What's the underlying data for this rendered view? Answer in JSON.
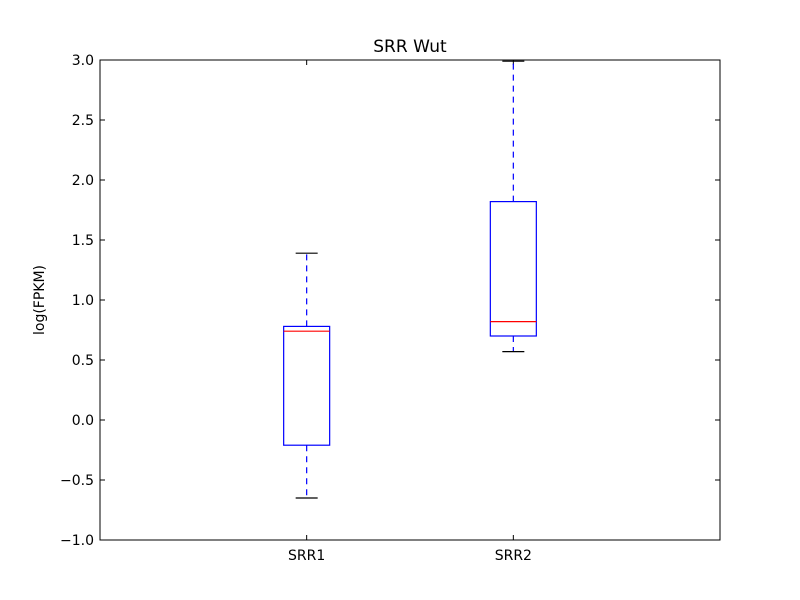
{
  "chart_data": {
    "type": "box",
    "title": "SRR Wut",
    "xlabel": "",
    "ylabel": "log(FPKM)",
    "ylim": [
      -1.0,
      3.0
    ],
    "yticks": [
      {
        "value": -1.0,
        "label": "−1.0"
      },
      {
        "value": -0.5,
        "label": "−0.5"
      },
      {
        "value": 0.0,
        "label": "0.0"
      },
      {
        "value": 0.5,
        "label": "0.5"
      },
      {
        "value": 1.0,
        "label": "1.0"
      },
      {
        "value": 1.5,
        "label": "1.5"
      },
      {
        "value": 2.0,
        "label": "2.0"
      },
      {
        "value": 2.5,
        "label": "2.5"
      },
      {
        "value": 3.0,
        "label": "3.0"
      }
    ],
    "categories": [
      "SRR1",
      "SRR2"
    ],
    "boxes": [
      {
        "label": "SRR1",
        "whisker_low": -0.65,
        "q1": -0.21,
        "median": 0.74,
        "q3": 0.78,
        "whisker_high": 1.39
      },
      {
        "label": "SRR2",
        "whisker_low": 0.57,
        "q1": 0.7,
        "median": 0.82,
        "q3": 1.82,
        "whisker_high": 2.99
      }
    ],
    "grid": false,
    "colors": {
      "box": "#0000ff",
      "median": "#ff0000",
      "cap": "#000000",
      "axis": "#000000"
    }
  }
}
